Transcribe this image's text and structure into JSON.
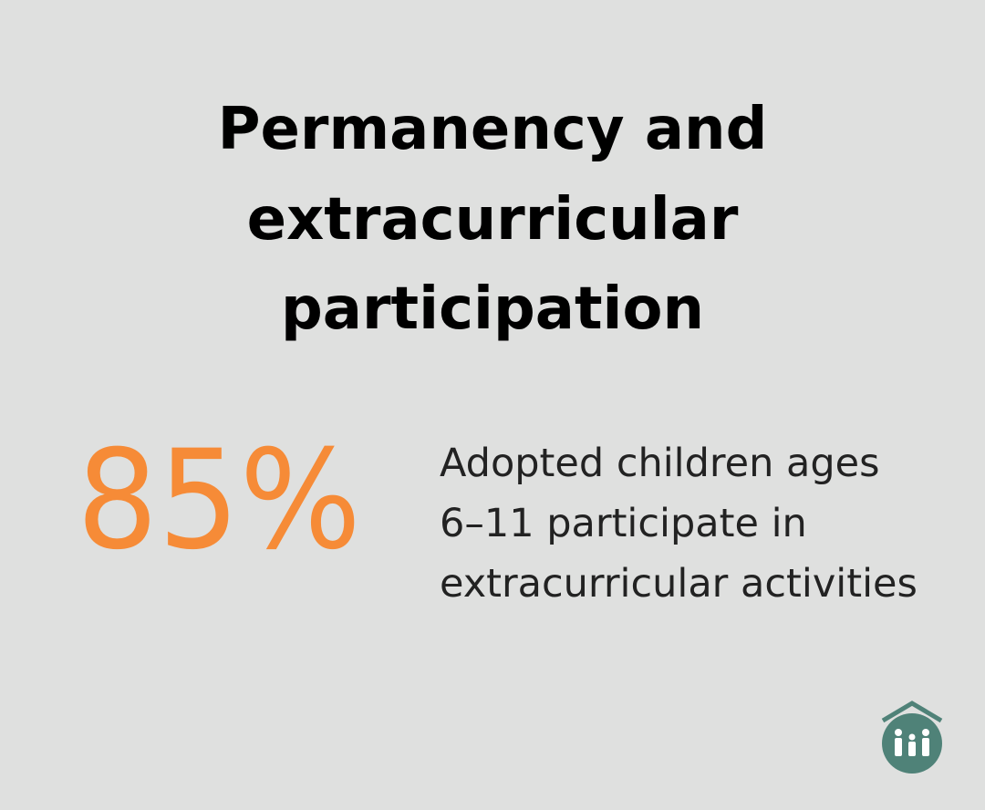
{
  "title_lines": [
    "Permanency and",
    "extracurricular",
    "participation"
  ],
  "stat": "85%",
  "description_lines": [
    "Adopted children ages",
    "6–11 participate in",
    "extracurricular activities"
  ]
}
